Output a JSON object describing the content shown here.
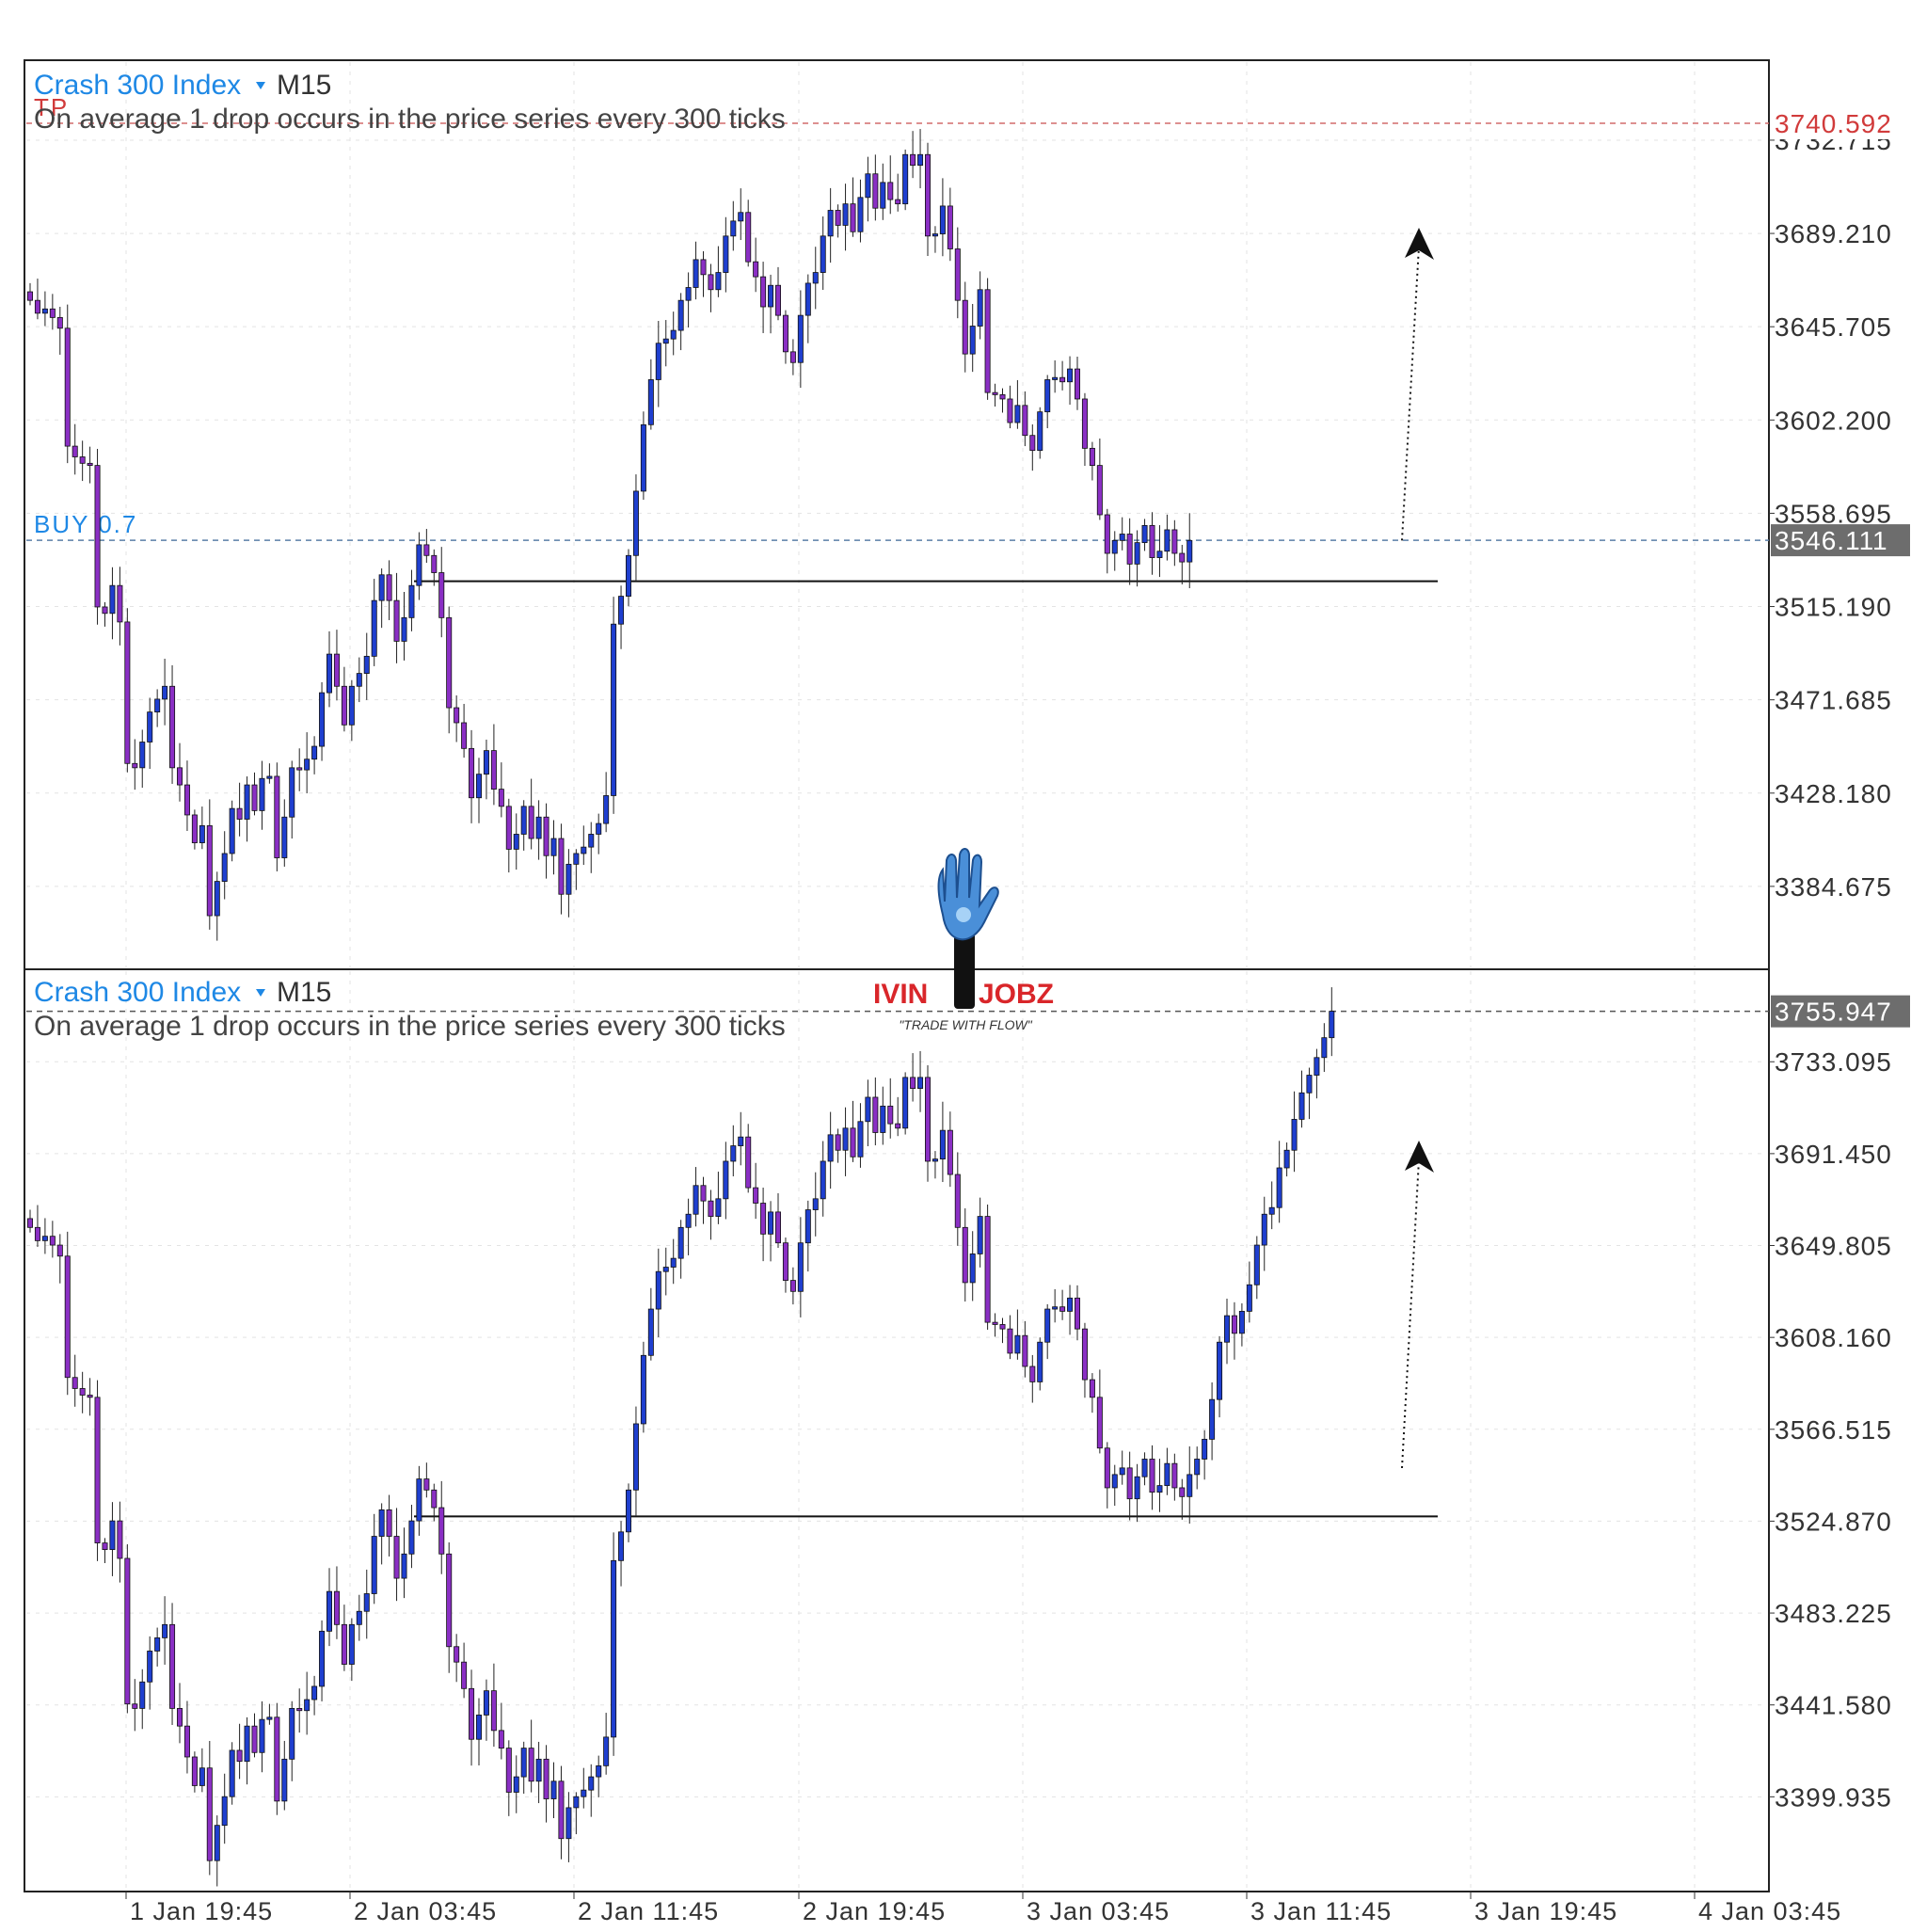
{
  "colors": {
    "bull": "#1f3fcf",
    "bear": "#8a2fc4",
    "grid": "#e3e3e3",
    "border": "#222222",
    "tp_line": "#d26b6b",
    "buy_line": "#5b7fa8",
    "label_bg": "#6d6d6d"
  },
  "logo": {
    "name": "IVIN JOBZ",
    "text_left": "IVIN",
    "text_right": "JOBZ",
    "tagline": "\"TRADE WITH FLOW\"",
    "icon": "raised-hand-icon"
  },
  "x_axis": {
    "labels": [
      "1 Jan 19:45",
      "2 Jan 03:45",
      "2 Jan 11:45",
      "2 Jan 19:45",
      "3 Jan 03:45",
      "3 Jan 11:45",
      "3 Jan 19:45",
      "4 Jan 03:45"
    ]
  },
  "chart_data": [
    {
      "type": "candlestick",
      "symbol": "Crash 300 Index",
      "dropdown_icon": "triangle-down-icon",
      "timeframe": "M15",
      "description": "On average 1 drop occurs in the price series every 300 ticks",
      "ylim": [
        3346.0,
        3770.0
      ],
      "y_ticks": [
        "3732.715",
        "3689.210",
        "3645.705",
        "3602.200",
        "3558.695",
        "3515.190",
        "3471.685",
        "3428.180",
        "3384.675"
      ],
      "levels": [
        {
          "label": "TP",
          "value": 3740.592,
          "tag": "3740.592",
          "style": "dashed-red"
        },
        {
          "label": "BUY 0.7",
          "value": 3546.111,
          "tag": "3546.111",
          "style": "dashed-blue"
        },
        {
          "label": "",
          "value": 3527.0,
          "style": "solid-black",
          "x_end_label": "3 Jan 15:15"
        }
      ],
      "arrow": {
        "from": {
          "time": "3 Jan 15:00",
          "price": 3546
        },
        "to": {
          "time": "3 Jan 15:30",
          "price": 3701
        }
      },
      "candles_close": [
        3658,
        3652,
        3654,
        3650,
        3645,
        3590,
        3585,
        3582,
        3581,
        3515,
        3512,
        3525,
        3508,
        3442,
        3440,
        3452,
        3466,
        3472,
        3478,
        3440,
        3432,
        3418,
        3405,
        3413,
        3371,
        3387,
        3400,
        3421,
        3416,
        3432,
        3420,
        3435,
        3436,
        3398,
        3417,
        3440,
        3439,
        3444,
        3450,
        3475,
        3493,
        3478,
        3460,
        3478,
        3484,
        3492,
        3518,
        3530,
        3518,
        3499,
        3510,
        3525,
        3544,
        3539,
        3531,
        3510,
        3468,
        3461,
        3449,
        3426,
        3437,
        3448,
        3430,
        3422,
        3402,
        3409,
        3422,
        3407,
        3417,
        3399,
        3407,
        3381,
        3395,
        3400,
        3403,
        3409,
        3414,
        3427,
        3507,
        3520,
        3539,
        3569,
        3600,
        3621,
        3638,
        3640,
        3644,
        3658,
        3664,
        3677,
        3670,
        3663,
        3671,
        3688,
        3695,
        3699,
        3676,
        3669,
        3655,
        3665,
        3651,
        3634,
        3629,
        3651,
        3666,
        3671,
        3688,
        3700,
        3693,
        3703,
        3690,
        3706,
        3717,
        3701,
        3713,
        3705,
        3703,
        3726,
        3721,
        3726,
        3688,
        3689,
        3702,
        3682,
        3658,
        3633,
        3646,
        3663,
        3615,
        3614,
        3612,
        3601,
        3609,
        3595,
        3588,
        3606,
        3621,
        3622,
        3620,
        3626,
        3612,
        3589,
        3581,
        3558,
        3540,
        3546,
        3549,
        3535,
        3545,
        3553,
        3538,
        3541,
        3551,
        3540,
        3536,
        3546
      ]
    },
    {
      "type": "candlestick",
      "symbol": "Crash 300 Index",
      "dropdown_icon": "triangle-down-icon",
      "timeframe": "M15",
      "description": "On average 1 drop occurs in the price series every 300 ticks",
      "ylim": [
        3357.0,
        3775.0
      ],
      "y_ticks": [
        "3733.095",
        "3691.450",
        "3649.805",
        "3608.160",
        "3566.515",
        "3524.870",
        "3483.225",
        "3441.580",
        "3399.935"
      ],
      "levels": [
        {
          "label": "",
          "value": 3755.947,
          "tag": "3755.947",
          "style": "dashed-gray"
        },
        {
          "label": "",
          "value": 3527.0,
          "style": "solid-black",
          "x_end_label": "3 Jan 15:15"
        }
      ],
      "arrow": {
        "from": {
          "time": "3 Jan 15:00",
          "price": 3546
        },
        "to": {
          "time": "3 Jan 15:30",
          "price": 3701
        }
      },
      "candles_close": [
        3658,
        3652,
        3654,
        3650,
        3645,
        3590,
        3585,
        3582,
        3581,
        3515,
        3512,
        3525,
        3508,
        3442,
        3440,
        3452,
        3466,
        3472,
        3478,
        3440,
        3432,
        3418,
        3405,
        3413,
        3371,
        3387,
        3400,
        3421,
        3416,
        3432,
        3420,
        3435,
        3436,
        3398,
        3417,
        3440,
        3439,
        3444,
        3450,
        3475,
        3493,
        3478,
        3460,
        3478,
        3484,
        3492,
        3518,
        3530,
        3518,
        3499,
        3510,
        3525,
        3544,
        3539,
        3531,
        3510,
        3468,
        3461,
        3449,
        3426,
        3437,
        3448,
        3430,
        3422,
        3402,
        3409,
        3422,
        3407,
        3417,
        3399,
        3407,
        3381,
        3395,
        3400,
        3403,
        3409,
        3414,
        3427,
        3507,
        3520,
        3539,
        3569,
        3600,
        3621,
        3638,
        3640,
        3644,
        3658,
        3664,
        3677,
        3670,
        3663,
        3671,
        3688,
        3695,
        3699,
        3676,
        3669,
        3655,
        3665,
        3651,
        3634,
        3629,
        3651,
        3666,
        3671,
        3688,
        3700,
        3693,
        3703,
        3690,
        3706,
        3717,
        3701,
        3713,
        3705,
        3703,
        3726,
        3721,
        3726,
        3688,
        3689,
        3702,
        3682,
        3658,
        3633,
        3646,
        3663,
        3615,
        3614,
        3612,
        3601,
        3609,
        3595,
        3588,
        3606,
        3621,
        3622,
        3620,
        3626,
        3612,
        3589,
        3581,
        3558,
        3540,
        3546,
        3549,
        3535,
        3545,
        3553,
        3538,
        3541,
        3551,
        3540,
        3536,
        3546,
        3553,
        3562,
        3580,
        3606,
        3618,
        3610,
        3620,
        3632,
        3650,
        3664,
        3667,
        3685,
        3693,
        3707,
        3719,
        3727,
        3735,
        3744,
        3756
      ]
    }
  ]
}
